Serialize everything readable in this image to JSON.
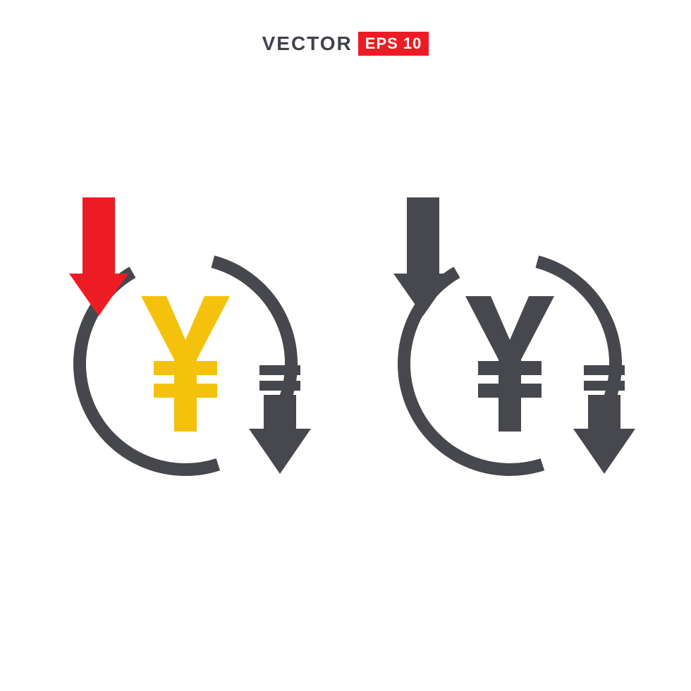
{
  "header": {
    "vector_label": "VECTOR",
    "eps_label": "EPS 10",
    "vector_color": "#3f4249",
    "badge_bg": "#ed1c24",
    "badge_text_color": "#ffffff"
  },
  "icons": {
    "type": "infographic",
    "background_color": "#ffffff",
    "glyph": "¥",
    "variants": [
      {
        "name": "colored",
        "arrow_left_color": "#ed1c24",
        "arrow_right_color": "#47484d",
        "ring_color": "#47484d",
        "yen_color": "#f4c20d",
        "ring_stroke_width": 18
      },
      {
        "name": "mono",
        "arrow_left_color": "#47484d",
        "arrow_right_color": "#47484d",
        "ring_color": "#47484d",
        "yen_color": "#47484d",
        "ring_stroke_width": 18
      }
    ]
  }
}
